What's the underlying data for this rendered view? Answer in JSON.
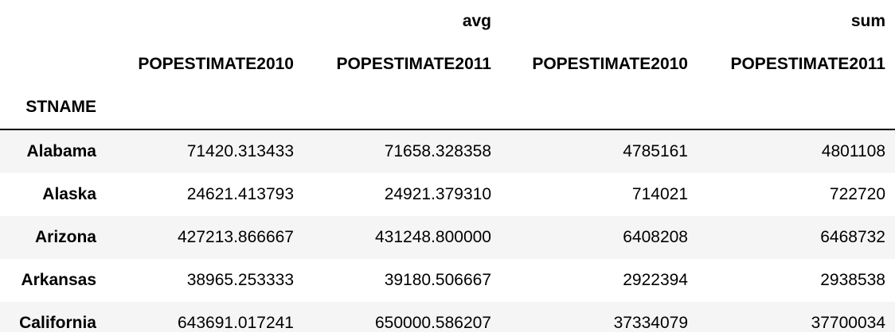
{
  "table": {
    "group_headers": [
      "avg",
      "sum"
    ],
    "column_headers": [
      "POPESTIMATE2010",
      "POPESTIMATE2011",
      "POPESTIMATE2010",
      "POPESTIMATE2011"
    ],
    "index_name": "STNAME",
    "rows": [
      {
        "index": "Alabama",
        "values": [
          "71420.313433",
          "71658.328358",
          "4785161",
          "4801108"
        ]
      },
      {
        "index": "Alaska",
        "values": [
          "24621.413793",
          "24921.379310",
          "714021",
          "722720"
        ]
      },
      {
        "index": "Arizona",
        "values": [
          "427213.866667",
          "431248.800000",
          "6408208",
          "6468732"
        ]
      },
      {
        "index": "Arkansas",
        "values": [
          "38965.253333",
          "39180.506667",
          "2922394",
          "2938538"
        ]
      },
      {
        "index": "California",
        "values": [
          "643691.017241",
          "650000.586207",
          "37334079",
          "37700034"
        ]
      }
    ]
  }
}
